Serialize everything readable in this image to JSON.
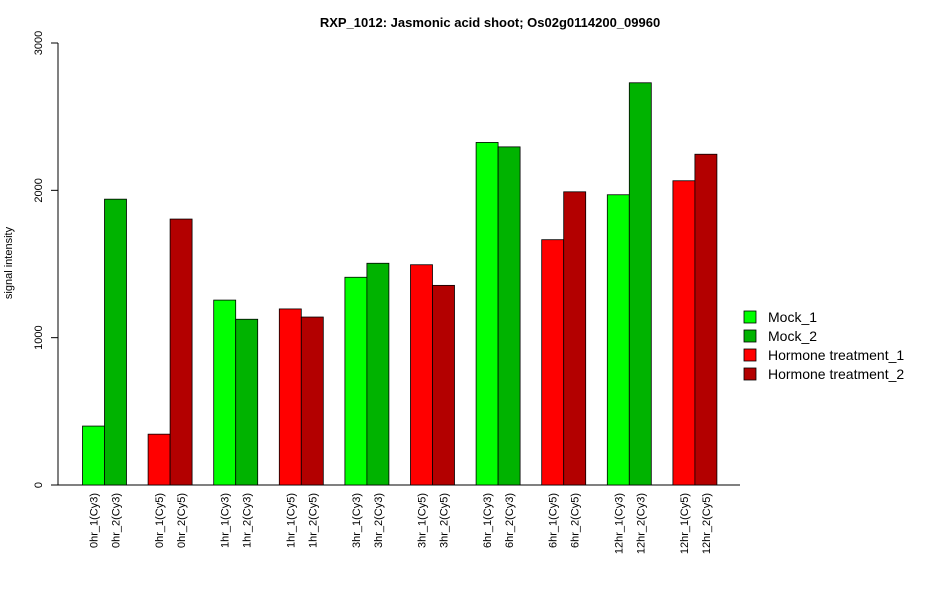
{
  "chart_data": {
    "type": "bar",
    "title": "RXP_1012: Jasmonic acid shoot; Os02g0114200_09960",
    "ylabel": "signal intensity",
    "xlabel": "",
    "ylim": [
      0,
      3000
    ],
    "yticks": [
      0,
      1000,
      2000,
      3000
    ],
    "grid": false,
    "legend_position": "right",
    "series": [
      {
        "name": "Mock_1",
        "color": "#00ff00"
      },
      {
        "name": "Mock_2",
        "color": "#00b300"
      },
      {
        "name": "Hormone treatment_1",
        "color": "#ff0000"
      },
      {
        "name": "Hormone treatment_2",
        "color": "#b30000"
      }
    ],
    "groups": [
      {
        "bars": [
          {
            "label": "0hr_1(Cy3)",
            "value": 400,
            "series": 0
          },
          {
            "label": "0hr_2(Cy3)",
            "value": 1940,
            "series": 1
          }
        ]
      },
      {
        "bars": [
          {
            "label": "0hr_1(Cy5)",
            "value": 345,
            "series": 2
          },
          {
            "label": "0hr_2(Cy5)",
            "value": 1805,
            "series": 3
          }
        ]
      },
      {
        "bars": [
          {
            "label": "1hr_1(Cy3)",
            "value": 1255,
            "series": 0
          },
          {
            "label": "1hr_2(Cy3)",
            "value": 1125,
            "series": 1
          }
        ]
      },
      {
        "bars": [
          {
            "label": "1hr_1(Cy5)",
            "value": 1195,
            "series": 2
          },
          {
            "label": "1hr_2(Cy5)",
            "value": 1140,
            "series": 3
          }
        ]
      },
      {
        "bars": [
          {
            "label": "3hr_1(Cy3)",
            "value": 1410,
            "series": 0
          },
          {
            "label": "3hr_2(Cy3)",
            "value": 1505,
            "series": 1
          }
        ]
      },
      {
        "bars": [
          {
            "label": "3hr_1(Cy5)",
            "value": 1495,
            "series": 2
          },
          {
            "label": "3hr_2(Cy5)",
            "value": 1355,
            "series": 3
          }
        ]
      },
      {
        "bars": [
          {
            "label": "6hr_1(Cy3)",
            "value": 2325,
            "series": 0
          },
          {
            "label": "6hr_2(Cy3)",
            "value": 2295,
            "series": 1
          }
        ]
      },
      {
        "bars": [
          {
            "label": "6hr_1(Cy5)",
            "value": 1665,
            "series": 2
          },
          {
            "label": "6hr_2(Cy5)",
            "value": 1990,
            "series": 3
          }
        ]
      },
      {
        "bars": [
          {
            "label": "12hr_1(Cy3)",
            "value": 1970,
            "series": 0
          },
          {
            "label": "12hr_2(Cy3)",
            "value": 2730,
            "series": 1
          }
        ]
      },
      {
        "bars": [
          {
            "label": "12hr_1(Cy5)",
            "value": 2065,
            "series": 2
          },
          {
            "label": "12hr_2(Cy5)",
            "value": 2245,
            "series": 3
          }
        ]
      }
    ]
  }
}
